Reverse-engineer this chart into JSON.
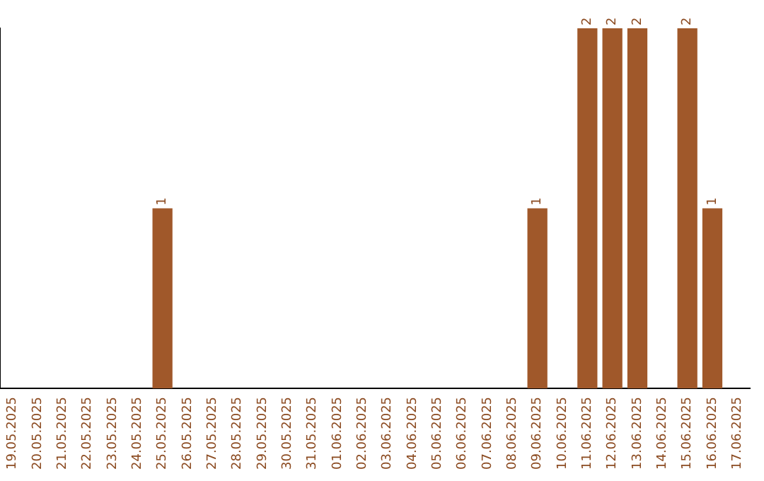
{
  "chart_data": {
    "type": "bar",
    "categories": [
      "19.05.2025",
      "20.05.2025",
      "21.05.2025",
      "22.05.2025",
      "23.05.2025",
      "24.05.2025",
      "25.05.2025",
      "26.05.2025",
      "27.05.2025",
      "28.05.2025",
      "29.05.2025",
      "30.05.2025",
      "31.05.2025",
      "01.06.2025",
      "02.06.2025",
      "03.06.2025",
      "04.06.2025",
      "05.06.2025",
      "06.06.2025",
      "07.06.2025",
      "08.06.2025",
      "09.06.2025",
      "10.06.2025",
      "11.06.2025",
      "12.06.2025",
      "13.06.2025",
      "14.06.2025",
      "15.06.2025",
      "16.06.2025",
      "17.06.2025"
    ],
    "values": [
      0,
      0,
      0,
      0,
      0,
      0,
      1,
      0,
      0,
      0,
      0,
      0,
      0,
      0,
      0,
      0,
      0,
      0,
      0,
      0,
      0,
      1,
      0,
      2,
      2,
      2,
      0,
      2,
      1,
      0
    ],
    "value_labels": [
      null,
      null,
      null,
      null,
      null,
      null,
      "1",
      null,
      null,
      null,
      null,
      null,
      null,
      null,
      null,
      null,
      null,
      null,
      null,
      null,
      null,
      "1",
      null,
      "2",
      "2",
      "2",
      null,
      "2",
      "1",
      null
    ],
    "color": "#a0582a",
    "ylim": [
      0,
      2
    ],
    "tick_labels": "x",
    "grid": false,
    "legend": false
  }
}
